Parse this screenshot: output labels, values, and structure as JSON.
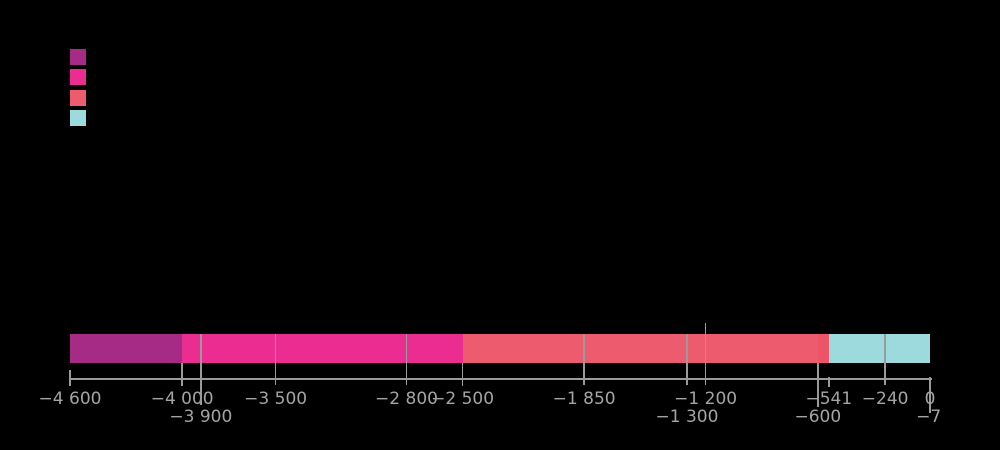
{
  "background_color": "#000000",
  "axis": {
    "line_color": "#9a9a9a",
    "label_color": "#a4a4a4"
  },
  "legend": {
    "items": [
      {
        "name": "legend-swatch-eon-1",
        "color": "#A62B85"
      },
      {
        "name": "legend-swatch-eon-2",
        "color": "#EB2D91"
      },
      {
        "name": "legend-swatch-eon-3",
        "color": "#EC5C6E"
      },
      {
        "name": "legend-swatch-eon-4",
        "color": "#9CDADD"
      }
    ]
  },
  "chart_data": {
    "type": "bar",
    "subtype": "segmented-timeline",
    "title": "",
    "xlabel": "",
    "ylabel": "",
    "x_domain": [
      -4600,
      0
    ],
    "grid": "off",
    "legend_position": "top-left",
    "segments": [
      {
        "from": -4600,
        "to": -4000,
        "color": "#A62B85"
      },
      {
        "from": -4000,
        "to": -2500,
        "color": "#EB2D91"
      },
      {
        "from": -2500,
        "to": -600,
        "color": "#EC5C6E"
      },
      {
        "from": -600,
        "to": -541,
        "color": "#EE5468"
      },
      {
        "from": -541,
        "to": 0,
        "color": "#9CDADD"
      }
    ],
    "ticks": [
      {
        "value": -4600,
        "label": "−4 600",
        "row": 1,
        "line": "edge-short"
      },
      {
        "value": -4000,
        "label": "−4 000",
        "row": 1,
        "line": "boundary"
      },
      {
        "value": -3900,
        "label": "−3 900",
        "row": 2,
        "line": "long-marker"
      },
      {
        "value": -3500,
        "label": "−3 500",
        "row": 1,
        "line": "marker"
      },
      {
        "value": -2800,
        "label": "−2 800",
        "row": 1,
        "line": "marker"
      },
      {
        "value": -2500,
        "label": "−2 500",
        "row": 1,
        "line": "boundary"
      },
      {
        "value": -1850,
        "label": "−1 850",
        "row": 1,
        "line": "marker"
      },
      {
        "value": -1300,
        "label": "−1 300",
        "row": 2,
        "line": "marker"
      },
      {
        "value": -1200,
        "label": "−1 200",
        "row": 1,
        "line": "marker-above"
      },
      {
        "value": -600,
        "label": "−600",
        "row": 2,
        "line": "long-boundary"
      },
      {
        "value": -541,
        "label": "−541",
        "row": 1,
        "line": "short"
      },
      {
        "value": -240,
        "label": "−240",
        "row": 1,
        "line": "marker"
      },
      {
        "value": -7,
        "label": "−7",
        "row": 2,
        "line": "none"
      },
      {
        "value": 0,
        "label": "0",
        "row": 1,
        "line": "edge-long"
      }
    ]
  }
}
